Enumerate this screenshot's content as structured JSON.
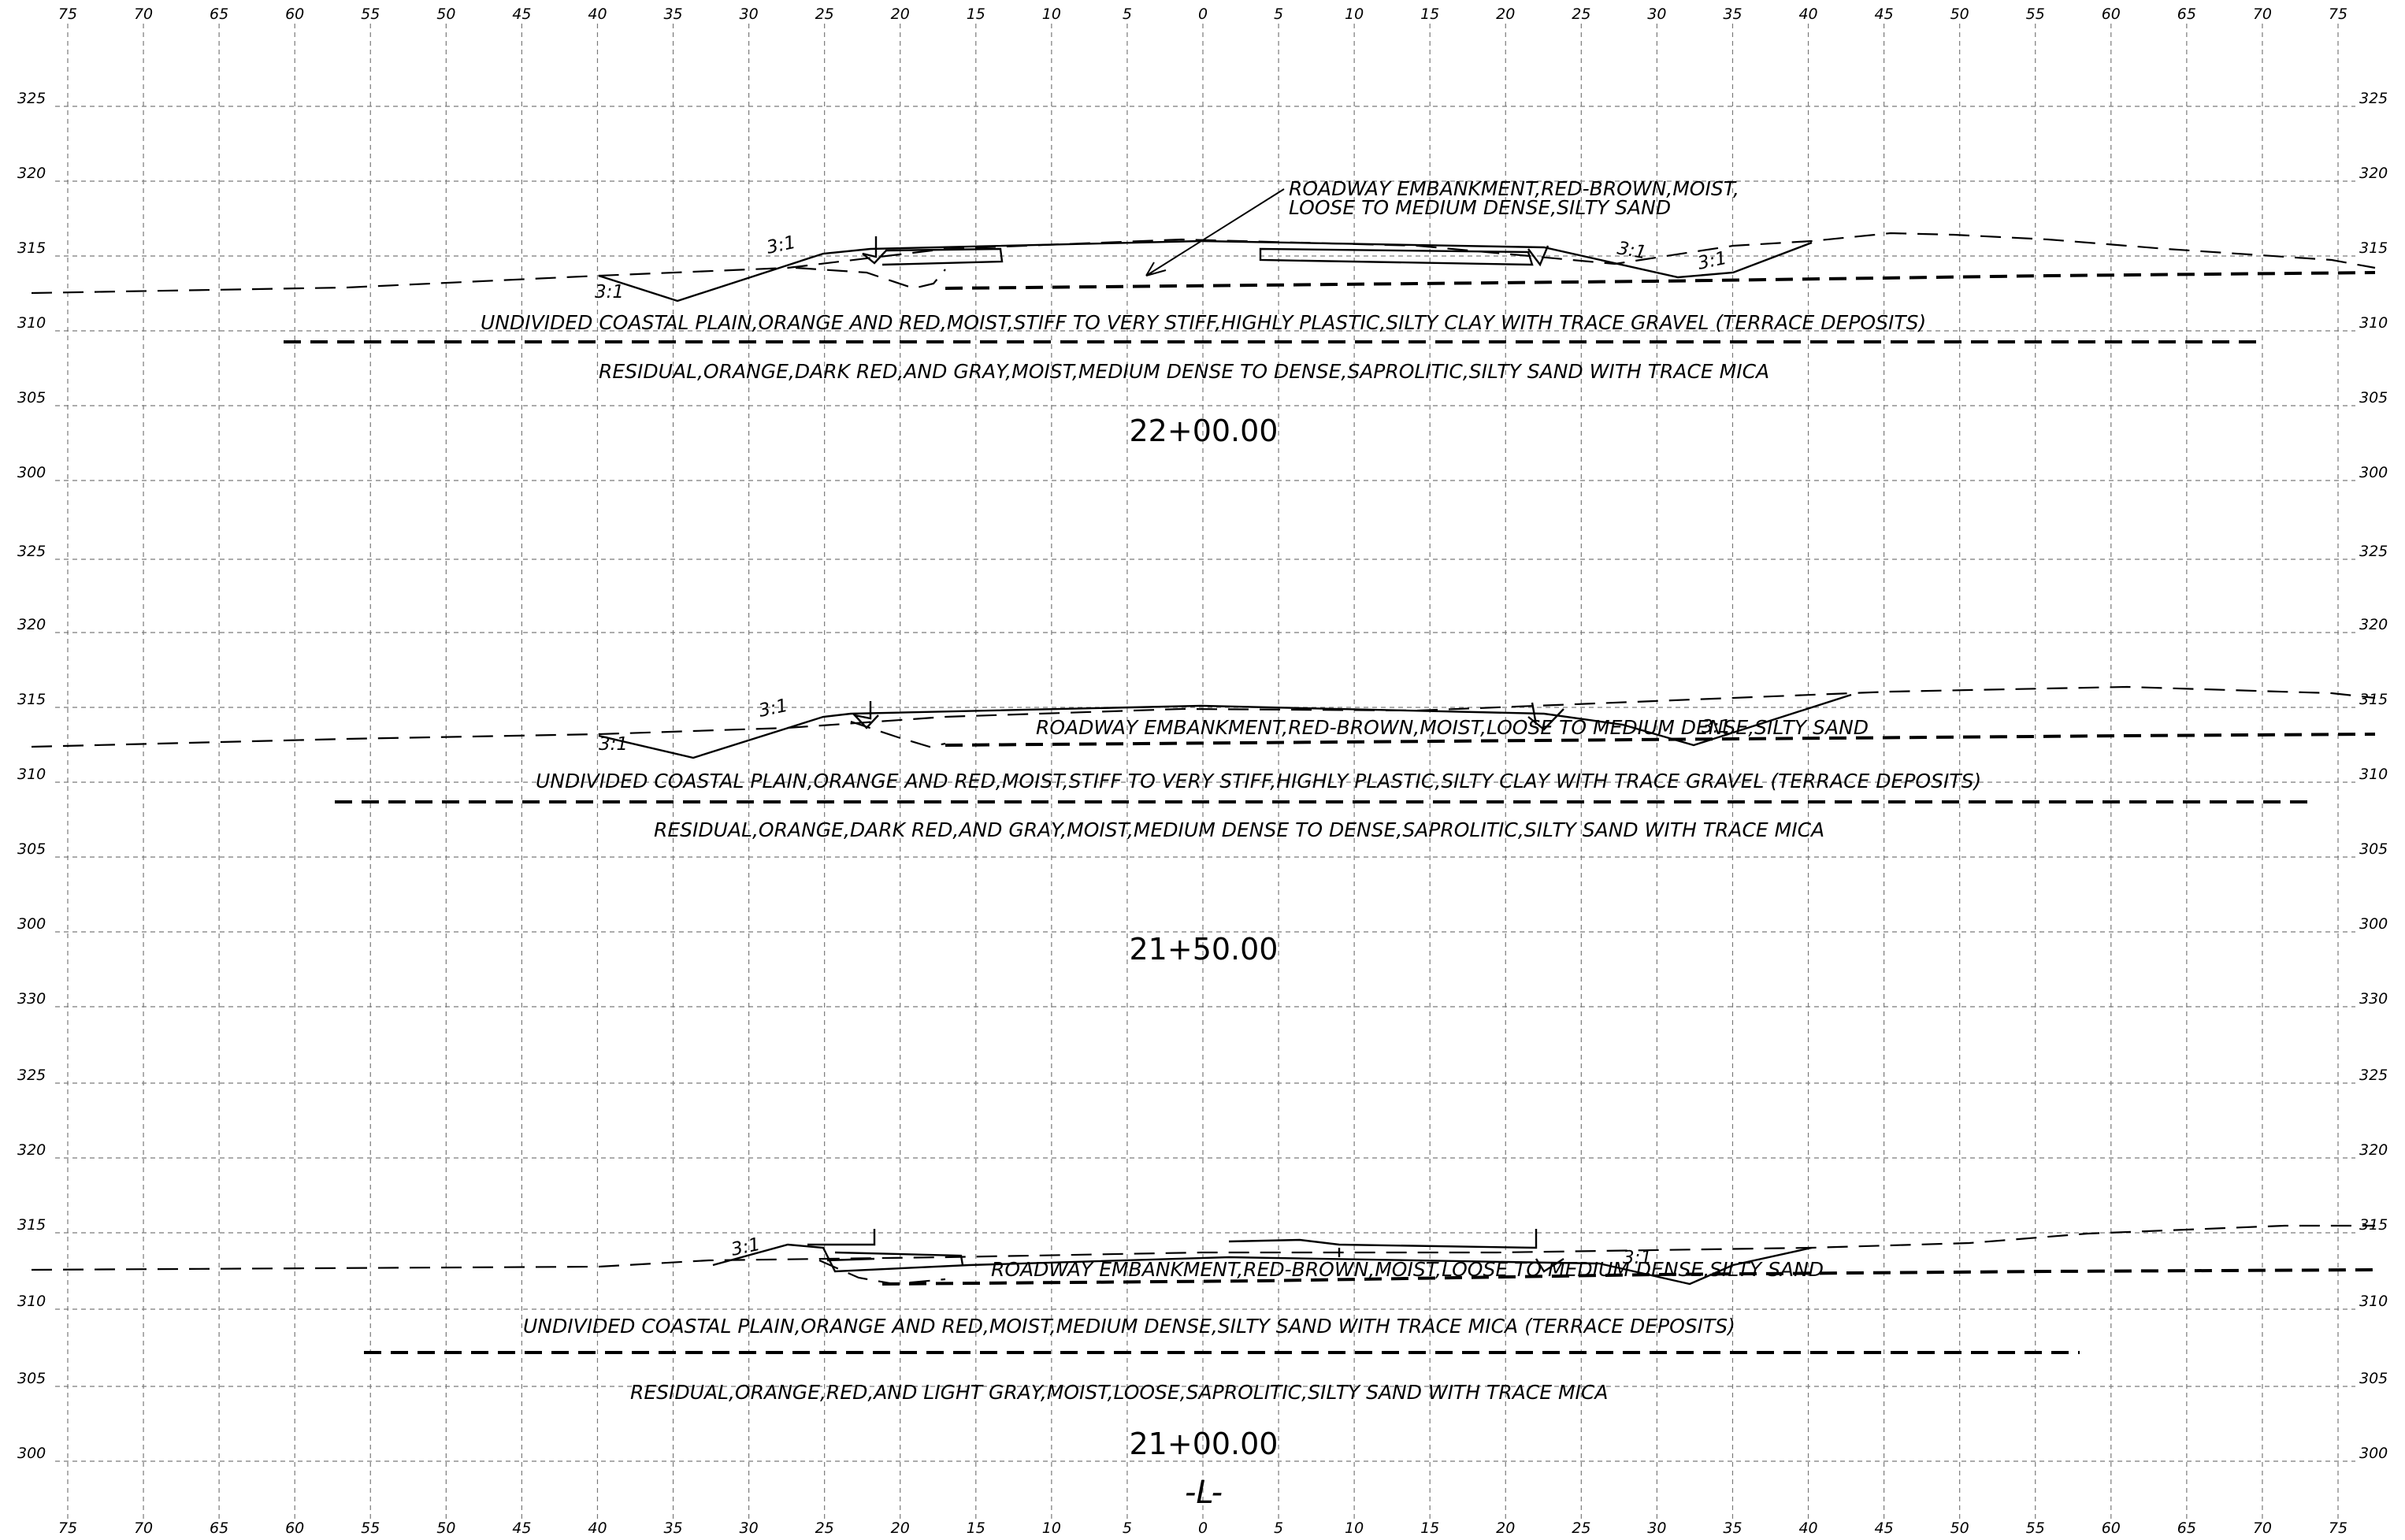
{
  "offset_ticks": [
    "75",
    "70",
    "65",
    "60",
    "55",
    "50",
    "45",
    "40",
    "35",
    "30",
    "25",
    "20",
    "15",
    "10",
    "5",
    "0",
    "5",
    "10",
    "15",
    "20",
    "25",
    "30",
    "35",
    "40",
    "45",
    "50",
    "55",
    "60",
    "65",
    "70",
    "75"
  ],
  "centerline_label": "-L-",
  "sections": [
    {
      "station": "22+00.00",
      "elevations": [
        "325",
        "320",
        "315",
        "310",
        "305",
        "300"
      ],
      "slopes": [
        "3:1",
        "3:1",
        "3:1",
        "3:1"
      ],
      "notes": {
        "embankment_line1": "ROADWAY EMBANKMENT,RED-BROWN,MOIST,",
        "embankment_line2": "LOOSE TO MEDIUM DENSE,SILTY SAND",
        "coastal": "UNDIVIDED COASTAL PLAIN,ORANGE AND RED,MOIST,STIFF TO VERY STIFF,HIGHLY PLASTIC,SILTY CLAY WITH TRACE GRAVEL (TERRACE DEPOSITS)",
        "residual": "RESIDUAL,ORANGE,DARK RED,AND GRAY,MOIST,MEDIUM DENSE TO DENSE,SAPROLITIC,SILTY SAND WITH TRACE MICA"
      }
    },
    {
      "station": "21+50.00",
      "elevations": [
        "325",
        "320",
        "315",
        "310",
        "305",
        "300"
      ],
      "slopes": [
        "3:1",
        "3:1",
        "3:1"
      ],
      "notes": {
        "embankment": "ROADWAY EMBANKMENT,RED-BROWN,MOIST,LOOSE TO MEDIUM DENSE,SILTY SAND",
        "coastal": "UNDIVIDED COASTAL PLAIN,ORANGE AND RED,MOIST,STIFF TO VERY STIFF,HIGHLY PLASTIC,SILTY CLAY WITH TRACE GRAVEL (TERRACE DEPOSITS)",
        "residual": "RESIDUAL,ORANGE,DARK RED,AND GRAY,MOIST,MEDIUM DENSE TO DENSE,SAPROLITIC,SILTY SAND WITH TRACE MICA"
      }
    },
    {
      "station": "21+00.00",
      "elevations": [
        "330",
        "325",
        "320",
        "315",
        "310",
        "305",
        "300"
      ],
      "slopes": [
        "3:1",
        "3:1"
      ],
      "notes": {
        "embankment": "ROADWAY EMBANKMENT,RED-BROWN,MOIST,LOOSE TO MEDIUM DENSE,SILTY SAND",
        "coastal": "UNDIVIDED COASTAL PLAIN,ORANGE AND RED,MOIST,MEDIUM DENSE,SILTY SAND WITH TRACE MICA (TERRACE DEPOSITS)",
        "residual": "RESIDUAL,ORANGE,RED,AND LIGHT GRAY,MOIST,LOOSE,SAPROLITIC,SILTY SAND WITH TRACE MICA"
      }
    }
  ]
}
